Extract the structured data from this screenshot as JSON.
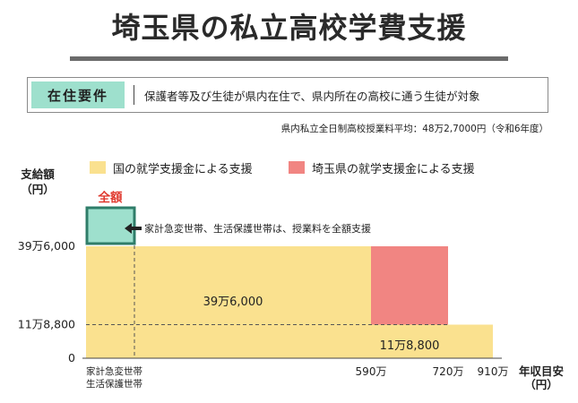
{
  "title": "埼玉県の私立高校学費支援",
  "requirement": {
    "label": "在住要件",
    "text": "保護者等及び生徒が県内在住で、県内所在の高校に通う生徒が対象"
  },
  "note": "県内私立全日制高校授業料平均：48万2,7000円（令和6年度）",
  "colors": {
    "national": "#fae18f",
    "saitama": "#f18582",
    "full": "#9ee0cd",
    "full_border": "#2f7d69",
    "full_label": "#e03a2f"
  },
  "chart_data": {
    "type": "area",
    "title": "",
    "ylabel": "支給額\n（円）",
    "xlabel": "年収目安\n（円）",
    "y_tick_labels": [
      "39万6,000",
      "11万8,800",
      "0"
    ],
    "y_ticks": [
      396000,
      118800,
      0
    ],
    "x_tick_labels": [
      "家計急変世帯\n生活保護世帯",
      "590万",
      "720万",
      "910万"
    ],
    "legend": [
      "国の就学支援金による支援",
      "埼玉県の就学支援金による支援"
    ],
    "full_label": "全額",
    "annotation": "家計急変世帯、生活保護世帯は、授業料を全額支援",
    "data_labels": [
      "39万6,000",
      "11万8,800"
    ],
    "series": [
      {
        "name": "国の就学支援金による支援",
        "segments": [
          {
            "x_from": "家計急変世帯",
            "x_to": "590万",
            "value": 396000
          },
          {
            "x_from": "590万",
            "x_to": "910万",
            "value": 118800
          }
        ]
      },
      {
        "name": "埼玉県の就学支援金による支援",
        "segments": [
          {
            "x_from": "590万",
            "x_to": "720万",
            "value": 277200
          }
        ]
      }
    ],
    "full_support_segment": {
      "x": "家計急変世帯",
      "value": "全額"
    }
  }
}
